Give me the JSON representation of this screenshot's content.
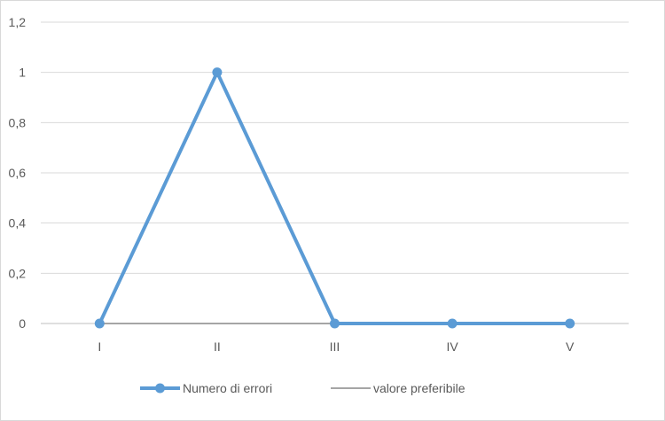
{
  "chart_data": {
    "type": "line",
    "title": "",
    "xlabel": "",
    "ylabel": "",
    "categories": [
      "I",
      "II",
      "III",
      "IV",
      "V"
    ],
    "ylim": [
      0,
      1.2
    ],
    "yticks": [
      0,
      0.2,
      0.4,
      0.6,
      0.8,
      1,
      1.2
    ],
    "ytick_labels": [
      "0",
      "0,2",
      "0,4",
      "0,6",
      "0,8",
      "1",
      "1,2"
    ],
    "grid": true,
    "legend_position": "bottom",
    "series": [
      {
        "name": "Numero di errori",
        "values": [
          0,
          1,
          0,
          0,
          0
        ],
        "color": "#5b9bd5",
        "markers": true
      },
      {
        "name": "valore preferibile",
        "values": [
          0,
          0,
          0,
          0,
          0
        ],
        "color": "#a5a5a5",
        "markers": false
      }
    ]
  }
}
